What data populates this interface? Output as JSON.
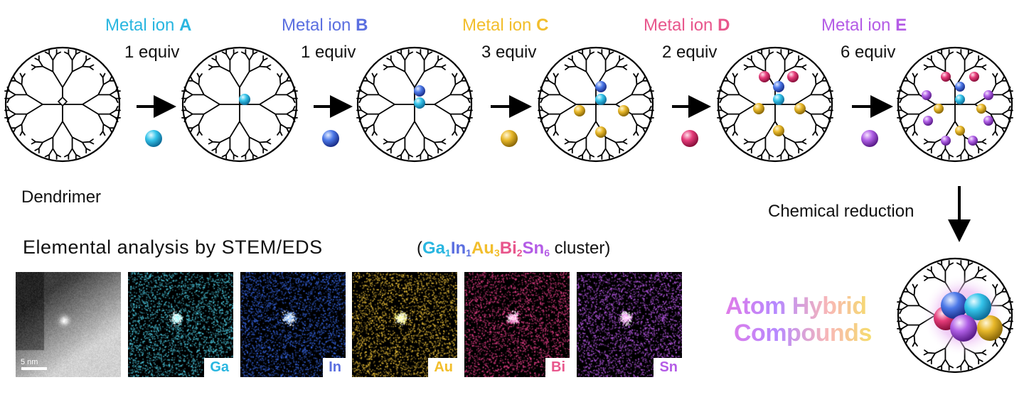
{
  "steps": [
    {
      "prefix": "Metal ion ",
      "letter": "A",
      "equiv": "1 equiv",
      "color": "#29b6e0"
    },
    {
      "prefix": "Metal ion ",
      "letter": "B",
      "equiv": "1 equiv",
      "color": "#5b6fe0"
    },
    {
      "prefix": "Metal ion ",
      "letter": "C",
      "equiv": "3 equiv",
      "color": "#f2be2c"
    },
    {
      "prefix": "Metal ion ",
      "letter": "D",
      "equiv": "2 equiv",
      "color": "#e8568c"
    },
    {
      "prefix": "Metal ion ",
      "letter": "E",
      "equiv": "6 equiv",
      "color": "#b45ce6"
    }
  ],
  "dendrimer_label": "Dendrimer",
  "reduction_label": "Chemical reduction",
  "stem_title": "Elemental analysis by STEM/EDS",
  "formula": {
    "open": "(",
    "parts": [
      {
        "el": "Ga",
        "n": "1",
        "color": "#29b6e0"
      },
      {
        "el": "In",
        "n": "1",
        "color": "#5b6fe0"
      },
      {
        "el": "Au",
        "n": "3",
        "color": "#f2be2c"
      },
      {
        "el": "Bi",
        "n": "2",
        "color": "#e8568c"
      },
      {
        "el": "Sn",
        "n": "6",
        "color": "#b45ce6"
      }
    ],
    "close": " cluster)"
  },
  "panels": [
    {
      "label": "",
      "scale": "5 nm",
      "type": "haadf"
    },
    {
      "label": "Ga",
      "color": "#29b6e0",
      "dot": "#4fd2ea"
    },
    {
      "label": "In",
      "color": "#5b6fe0",
      "dot": "#3a6cf0"
    },
    {
      "label": "Au",
      "color": "#f2be2c",
      "dot": "#f0c43a"
    },
    {
      "label": "Bi",
      "color": "#e8568c",
      "dot": "#ea3f8a"
    },
    {
      "label": "Sn",
      "color": "#b45ce6",
      "dot": "#c05cf0"
    }
  ],
  "product_title_line1": "Atom Hybrid",
  "product_title_line2": "Compounds"
}
